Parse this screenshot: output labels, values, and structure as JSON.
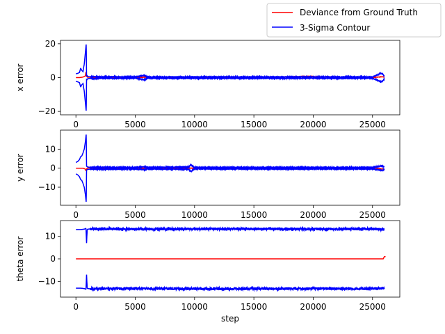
{
  "chart_data": [
    {
      "type": "line",
      "xlabel": "",
      "ylabel": "x error",
      "xlim": [
        -1300,
        27300
      ],
      "ylim": [
        -22,
        22
      ],
      "xticks": [
        0,
        5000,
        10000,
        15000,
        20000,
        25000
      ],
      "yticks": [
        -20,
        0,
        20
      ],
      "grid": false,
      "series": [
        {
          "name": "Deviance from Ground Truth",
          "color": "#ff0000",
          "x": [
            0,
            300,
            600,
            800,
            850,
            900,
            950,
            1000,
            2000,
            5000,
            5800,
            10000,
            15000,
            19900,
            20000,
            25000,
            25800,
            26000
          ],
          "y": [
            0,
            0,
            0.3,
            1,
            3.5,
            1,
            0.3,
            0.2,
            0.1,
            0,
            0.2,
            0,
            0,
            0.8,
            0.6,
            0,
            0.5,
            0.3
          ]
        },
        {
          "name": "3-Sigma Contour",
          "color": "#0000ff",
          "x": [
            0,
            150,
            300,
            400,
            500,
            600,
            700,
            800,
            870,
            900,
            950,
            1000,
            1200,
            1500,
            2000,
            3000,
            5000,
            5800,
            6000,
            10000,
            15000,
            20000,
            25000,
            25600,
            25800,
            26000
          ],
          "upper": [
            2.2,
            2.5,
            3,
            5.5,
            4.2,
            3.5,
            8,
            15,
            20,
            1,
            1.2,
            0.6,
            0.5,
            0.7,
            0.4,
            0.5,
            0.4,
            1.3,
            0.4,
            0.4,
            0.4,
            0.4,
            0.4,
            2.2,
            2.5,
            0.8
          ],
          "lower": [
            -2.2,
            -2.5,
            -3,
            -5.5,
            -4.2,
            -3.5,
            -8,
            -15,
            -20,
            -1,
            -1.2,
            -0.6,
            -0.5,
            -0.7,
            -0.4,
            -0.5,
            -0.4,
            -1.3,
            -0.4,
            -0.4,
            -0.4,
            -0.4,
            -0.4,
            -2.2,
            -2.5,
            -0.8
          ]
        }
      ]
    },
    {
      "type": "line",
      "xlabel": "",
      "ylabel": "y error",
      "xlim": [
        -1300,
        27300
      ],
      "ylim": [
        -19.5,
        20
      ],
      "xticks": [
        0,
        5000,
        10000,
        15000,
        20000,
        25000
      ],
      "yticks": [
        -10,
        0,
        10
      ],
      "grid": false,
      "series": [
        {
          "name": "Deviance from Ground Truth",
          "color": "#ff0000",
          "x": [
            0,
            300,
            600,
            800,
            850,
            900,
            950,
            1000,
            5000,
            10000,
            15000,
            20000,
            25000,
            26000
          ],
          "y": [
            0,
            0,
            0,
            -0.5,
            -1.5,
            -0.5,
            0,
            0.1,
            0,
            0,
            0,
            0,
            0,
            -0.5
          ]
        },
        {
          "name": "3-Sigma Contour",
          "color": "#0000ff",
          "x": [
            0,
            150,
            300,
            400,
            500,
            600,
            700,
            800,
            870,
            900,
            950,
            1000,
            1200,
            2000,
            5000,
            5800,
            6000,
            9500,
            9700,
            9900,
            10000,
            15000,
            20000,
            25000,
            25800,
            26000
          ],
          "upper": [
            3,
            3.5,
            4.5,
            6,
            6.5,
            8,
            10,
            14,
            18,
            1,
            0.8,
            0.6,
            0.5,
            0.5,
            0.4,
            0.8,
            0.4,
            0.6,
            1.8,
            0.8,
            0.4,
            0.4,
            0.4,
            0.4,
            1.2,
            0.6
          ],
          "lower": [
            -3,
            -3.5,
            -4.5,
            -6,
            -6.5,
            -8,
            -10,
            -14,
            -18,
            -1,
            -0.8,
            -0.6,
            -0.5,
            -0.5,
            -0.4,
            -0.8,
            -0.4,
            -0.6,
            -1.8,
            -0.8,
            -0.4,
            -0.4,
            -0.4,
            -0.4,
            -1.2,
            -0.6
          ]
        }
      ]
    },
    {
      "type": "line",
      "xlabel": "step",
      "ylabel": "theta error",
      "xlim": [
        -1300,
        27300
      ],
      "ylim": [
        -17,
        17
      ],
      "xticks": [
        0,
        5000,
        10000,
        15000,
        20000,
        25000
      ],
      "yticks": [
        -10,
        0,
        10
      ],
      "grid": false,
      "series": [
        {
          "name": "Deviance from Ground Truth",
          "color": "#ff0000",
          "x": [
            0,
            5000,
            10000,
            15000,
            20000,
            25000,
            25900,
            26000,
            26100
          ],
          "y": [
            0,
            0,
            0,
            0,
            0,
            0,
            0,
            1,
            1
          ]
        },
        {
          "name": "3-Sigma Contour",
          "color": "#0000ff",
          "x": [
            0,
            400,
            700,
            850,
            900,
            950,
            1000,
            1200,
            5000,
            10000,
            15000,
            20000,
            25000,
            26000
          ],
          "upper": [
            13,
            13,
            13.2,
            13.5,
            7,
            13,
            13.2,
            13.3,
            13.2,
            13.3,
            13.3,
            13.2,
            13.3,
            13
          ],
          "lower": [
            -13,
            -13,
            -13.2,
            -13.5,
            -7,
            -13,
            -13.2,
            -13.3,
            -13.2,
            -13.3,
            -13.3,
            -13.2,
            -13.3,
            -13
          ]
        }
      ]
    }
  ],
  "legend": {
    "placement": "top-right",
    "entries": [
      {
        "label": "Deviance from Ground Truth",
        "color": "#ff0000"
      },
      {
        "label": "3-Sigma Contour",
        "color": "#0000ff"
      }
    ]
  }
}
